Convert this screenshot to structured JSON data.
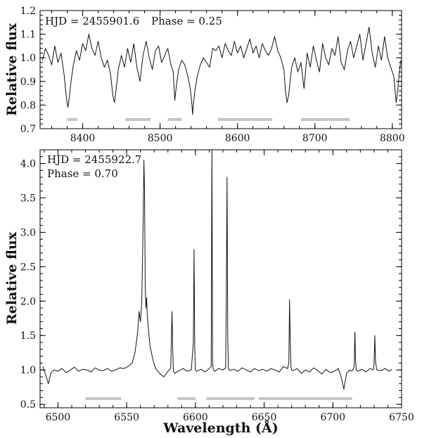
{
  "chart_data": [
    {
      "type": "line",
      "panel": "top",
      "annotations": [
        "HJD = 2455901.6",
        "Phase = 0.25"
      ],
      "xlabel": "",
      "ylabel": "Relative flux",
      "xlim": [
        8345,
        8812
      ],
      "ylim": [
        0.7,
        1.2
      ],
      "xticks": [
        8400,
        8500,
        8600,
        8700,
        8800
      ],
      "yticks": [
        0.7,
        0.8,
        0.9,
        1.0,
        1.1,
        1.2
      ],
      "xtick_labels": [
        "8400",
        "8500",
        "8600",
        "8700",
        "8800"
      ],
      "ytick_labels": [
        "0.7",
        "0.8",
        "0.9",
        "1.0",
        "1.1",
        "1.2"
      ],
      "series": [
        {
          "color": "#111111",
          "x": [
            8348,
            8352,
            8356,
            8360,
            8364,
            8368,
            8372,
            8376,
            8379,
            8381,
            8383,
            8385,
            8388,
            8392,
            8396,
            8400,
            8404,
            8408,
            8412,
            8416,
            8420,
            8424,
            8428,
            8432,
            8436,
            8439,
            8441,
            8443,
            8446,
            8450,
            8454,
            8458,
            8462,
            8466,
            8470,
            8474,
            8478,
            8482,
            8486,
            8490,
            8494,
            8498,
            8502,
            8506,
            8510,
            8514,
            8517,
            8519,
            8521,
            8524,
            8528,
            8532,
            8536,
            8539,
            8541,
            8542,
            8543,
            8545,
            8548,
            8552,
            8556,
            8560,
            8564,
            8568,
            8572,
            8576,
            8580,
            8584,
            8588,
            8592,
            8596,
            8600,
            8604,
            8608,
            8612,
            8616,
            8620,
            8624,
            8628,
            8632,
            8636,
            8640,
            8644,
            8648,
            8652,
            8656,
            8660,
            8662,
            8664,
            8666,
            8668,
            8670,
            8674,
            8678,
            8682,
            8686,
            8690,
            8694,
            8698,
            8702,
            8706,
            8710,
            8714,
            8718,
            8722,
            8726,
            8730,
            8734,
            8738,
            8742,
            8746,
            8750,
            8754,
            8758,
            8762,
            8766,
            8770,
            8774,
            8778,
            8782,
            8786,
            8790,
            8794,
            8798,
            8802,
            8805,
            8807,
            8809,
            8811
          ],
          "y": [
            0.99,
            1.04,
            1.01,
            0.97,
            1.05,
            0.98,
            1.02,
            0.93,
            0.83,
            0.79,
            0.84,
            0.9,
            0.97,
            1.03,
            0.99,
            1.06,
            1.03,
            1.1,
            1.04,
            1.01,
            1.07,
            1.0,
            0.96,
            0.99,
            0.93,
            0.84,
            0.81,
            0.86,
            0.95,
            1.01,
            0.96,
            1.04,
            0.98,
            1.06,
            0.96,
            0.9,
            1.01,
            1.07,
            1.0,
            0.95,
            1.03,
            1.05,
            0.98,
            1.01,
            1.04,
            0.97,
            0.94,
            0.82,
            0.88,
            0.95,
            0.99,
            0.97,
            0.92,
            0.87,
            0.81,
            0.76,
            0.8,
            0.86,
            0.92,
            0.97,
            1.0,
            0.98,
            0.96,
            1.04,
            1.03,
            1.05,
            1.0,
            1.06,
            1.03,
            1.01,
            1.07,
            1.02,
            1.05,
            1.0,
            1.04,
            1.08,
            1.02,
            1.05,
            1.0,
            1.06,
            1.03,
            1.01,
            1.04,
            1.09,
            1.03,
            1.0,
            0.95,
            0.86,
            0.81,
            0.84,
            0.9,
            0.96,
            1.0,
            0.94,
            0.98,
            0.87,
            1.02,
            0.96,
            1.05,
            0.99,
            0.94,
            1.06,
            1.0,
            0.97,
            1.04,
            1.01,
            1.09,
            0.98,
            0.95,
            1.03,
            1.07,
            1.0,
            1.05,
            1.1,
            0.99,
            1.06,
            1.13,
            1.02,
            0.96,
            1.05,
            0.99,
            1.09,
            1.0,
            0.96,
            0.92,
            0.81,
            0.86,
            0.94,
            0.99
          ]
        }
      ],
      "masked_ranges": [
        [
          8380,
          8393
        ],
        [
          8455,
          8488
        ],
        [
          8510,
          8528
        ],
        [
          8575,
          8645
        ],
        [
          8682,
          8745
        ]
      ]
    },
    {
      "type": "line",
      "panel": "bottom",
      "annotations": [
        "HJD = 2455922.7",
        "Phase = 0.70"
      ],
      "xlabel": "Wavelength (Å)",
      "ylabel": "Relative flux",
      "xlim": [
        6487,
        6750
      ],
      "ylim": [
        0.45,
        4.2
      ],
      "xticks": [
        6500,
        6550,
        6600,
        6650,
        6700,
        6750
      ],
      "yticks": [
        0.5,
        1.0,
        1.5,
        2.0,
        2.5,
        3.0,
        3.5,
        4.0
      ],
      "xtick_labels": [
        "6500",
        "6550",
        "6600",
        "6650",
        "6700",
        "6750"
      ],
      "ytick_labels": [
        "0.5",
        "1.0",
        "1.5",
        "2.0",
        "2.5",
        "3.0",
        "3.5",
        "4.0"
      ],
      "series": [
        {
          "color": "#111111",
          "x": [
            6489,
            6491,
            6493,
            6495,
            6497,
            6500,
            6503,
            6506,
            6509,
            6512,
            6515,
            6518,
            6521,
            6524,
            6527,
            6530,
            6533,
            6536,
            6539,
            6542,
            6545,
            6548,
            6551,
            6554,
            6556,
            6558,
            6559,
            6560,
            6561,
            6562,
            6562.5,
            6563,
            6563.5,
            6564,
            6564.5,
            6565,
            6566,
            6567,
            6569,
            6571,
            6574,
            6577,
            6580,
            6582,
            6583,
            6583.5,
            6584,
            6585,
            6588,
            6591,
            6594,
            6597,
            6598.5,
            6599,
            6599.5,
            6600,
            6601,
            6604,
            6607,
            6610,
            6611.5,
            6612,
            6612.5,
            6613,
            6614,
            6617,
            6620,
            6622,
            6622.5,
            6623,
            6623.5,
            6624,
            6625,
            6628,
            6631,
            6634,
            6637,
            6640,
            6643,
            6646,
            6649,
            6652,
            6655,
            6658,
            6661,
            6664,
            6667,
            6668,
            6668.5,
            6669,
            6669.5,
            6670,
            6671,
            6674,
            6677,
            6680,
            6683,
            6686,
            6689,
            6692,
            6695,
            6698,
            6701,
            6704,
            6706,
            6708,
            6710,
            6712,
            6714,
            6715.5,
            6716,
            6716.5,
            6717,
            6718,
            6721,
            6724,
            6727,
            6729.5,
            6730,
            6730.5,
            6731,
            6732,
            6735,
            6738,
            6741,
            6743
          ],
          "y": [
            1.05,
            0.93,
            0.8,
            0.96,
            1.0,
            0.98,
            1.02,
            0.96,
            1.0,
            1.04,
            0.98,
            1.01,
            1.0,
            0.97,
            1.03,
            1.0,
            0.99,
            1.02,
            0.98,
            1.0,
            1.03,
            1.02,
            1.05,
            1.1,
            1.25,
            1.55,
            1.85,
            1.7,
            2.0,
            3.2,
            4.05,
            3.6,
            2.2,
            1.9,
            2.05,
            1.8,
            1.55,
            1.35,
            1.15,
            1.02,
            0.95,
            0.9,
            0.98,
            1.02,
            1.85,
            1.3,
            0.98,
            0.95,
            0.99,
            1.02,
            0.98,
            1.0,
            1.4,
            2.75,
            1.3,
            1.0,
            0.98,
            1.01,
            0.97,
            1.02,
            1.05,
            4.25,
            1.1,
            1.0,
            0.98,
            1.02,
            1.0,
            1.03,
            2.1,
            3.8,
            1.5,
            1.02,
            0.99,
            1.01,
            0.98,
            1.03,
            1.0,
            0.97,
            1.02,
            0.99,
            1.01,
            0.98,
            1.02,
            1.0,
            0.97,
            1.05,
            1.02,
            1.1,
            2.02,
            1.4,
            1.05,
            1.0,
            0.99,
            1.02,
            0.95,
            1.0,
            0.97,
            1.03,
            0.99,
            0.94,
            1.01,
            0.96,
            0.98,
            1.02,
            0.9,
            0.72,
            0.95,
            1.0,
            0.98,
            1.05,
            1.55,
            1.15,
            1.0,
            0.98,
            1.01,
            0.97,
            1.02,
            1.0,
            1.1,
            1.5,
            1.12,
            1.0,
            0.99,
            1.02,
            0.98,
            1.01
          ]
        }
      ],
      "masked_ranges": [
        [
          6520,
          6546
        ],
        [
          6587,
          6600
        ],
        [
          6608,
          6643
        ],
        [
          6646,
          6714
        ]
      ]
    }
  ],
  "style": {
    "line_color": "#111111",
    "mask_color": "#c4c4c4",
    "axis_color": "#000000"
  }
}
